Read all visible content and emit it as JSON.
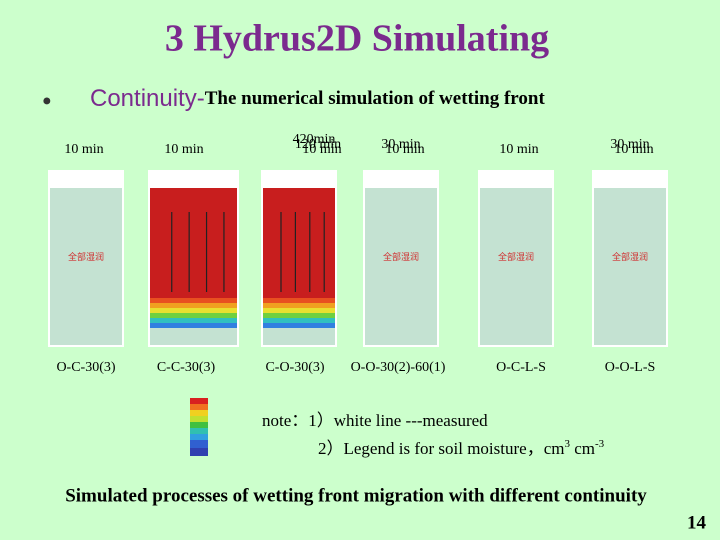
{
  "title": "3  Hydrus2D Simulating",
  "bullet": {
    "lead": "Continuity-",
    "text": "The numerical simulation of wetting front"
  },
  "panels": [
    {
      "times": [
        "10 min"
      ],
      "inner": "全部湿润",
      "label": "O-C-30(3)"
    },
    {
      "times": [
        "10 min"
      ],
      "label": "C-C-30(3)"
    },
    {
      "times": [
        "420min",
        "120 min",
        "10 min"
      ],
      "label": "C-O-30(3)"
    },
    {
      "times": [
        "30 min",
        "10 min"
      ],
      "inner": "全部湿润",
      "label": "O-O-30(2)-60(1)"
    },
    {
      "times": [
        "10 min"
      ],
      "inner": "全部湿润",
      "label": "O-C-L-S"
    },
    {
      "times": [
        "30 min",
        "10 min"
      ],
      "inner": "全部湿润",
      "label": "O-O-L-S"
    }
  ],
  "note": {
    "line1": "note：1）white line ---measured",
    "line2": "2）Legend is for soil moisture，cm",
    "sup1": "3",
    "mid": " cm",
    "sup2": "-3"
  },
  "caption": "Simulated processes of wetting front migration with different continuity",
  "page": "14"
}
